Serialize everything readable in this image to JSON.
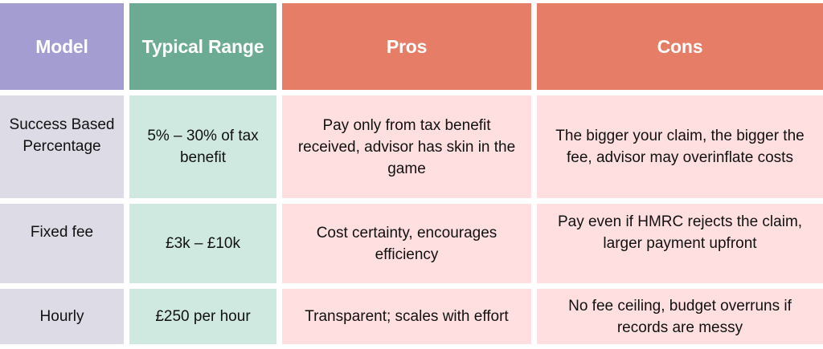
{
  "colors": {
    "page-bg": "#ffffff",
    "header-model": "#a49dd2",
    "header-range": "#6cab93",
    "header-pros": "#e67d66",
    "header-cons": "#e67d66",
    "body-model": "#dcdbe6",
    "body-range": "#d0e9e0",
    "body-pros": "#ffdfe0",
    "body-cons": "#ffdfe0",
    "header-text": "#ffffff",
    "body-text": "#111111"
  },
  "table": {
    "headers": {
      "model": "Model",
      "range": "Typical Range",
      "pros": "Pros",
      "cons": "Cons"
    },
    "rows": [
      {
        "model": "Success Based\nPercentage",
        "range": "5% – 30% of tax\nbenefit",
        "pros": "Pay only from tax benefit\nreceived, advisor has skin in the\ngame",
        "cons": "The bigger your claim, the bigger the\nfee, advisor may overinflate costs"
      },
      {
        "model": "Fixed fee",
        "range": "£3k – £10k",
        "pros": "Cost certainty, encourages\nefficiency",
        "cons": "Pay even if HMRC rejects the claim,\nlarger payment upfront"
      },
      {
        "model": "Hourly",
        "range": "£250 per hour",
        "pros": "Transparent; scales with effort",
        "cons": "No fee ceiling, budget overruns if\nrecords are messy"
      }
    ]
  },
  "chart_data": {
    "type": "table",
    "title": "",
    "columns": [
      "Model",
      "Typical Range",
      "Pros",
      "Cons"
    ],
    "rows": [
      [
        "Success Based Percentage",
        "5% – 30% of tax benefit",
        "Pay only from tax benefit received, advisor has skin in the game",
        "The bigger your claim, the bigger the fee, advisor may overinflate costs"
      ],
      [
        "Fixed fee",
        "£3k – £10k",
        "Cost certainty, encourages efficiency",
        "Pay even if HMRC rejects the claim, larger payment upfront"
      ],
      [
        "Hourly",
        "£250 per hour",
        "Transparent; scales with effort",
        "No fee ceiling, budget overruns if records are messy"
      ]
    ]
  }
}
